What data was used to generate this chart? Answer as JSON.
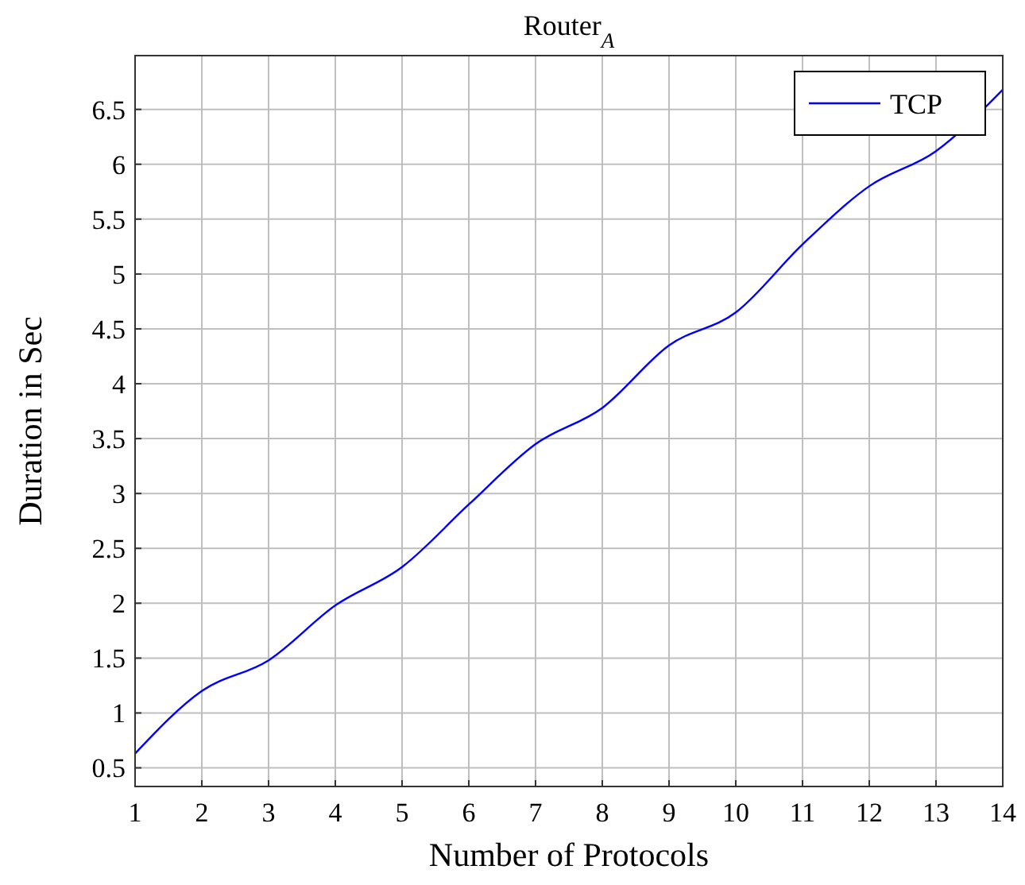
{
  "chart_data": {
    "type": "line",
    "title": "Router$_{A}$",
    "xlabel": "Number of Protocols",
    "ylabel": "Duration in Sec",
    "x": [
      1,
      2,
      3,
      4,
      5,
      6,
      7,
      8,
      9,
      10,
      11,
      12,
      13,
      14
    ],
    "series": [
      {
        "name": "TCP",
        "color": "#0000ff",
        "values": [
          0.63,
          1.2,
          1.48,
          1.98,
          2.33,
          2.9,
          3.45,
          3.78,
          4.35,
          4.65,
          5.27,
          5.8,
          6.12,
          6.68
        ]
      }
    ],
    "xlim": [
      1,
      14
    ],
    "xticks": [
      1,
      2,
      3,
      4,
      5,
      6,
      7,
      8,
      9,
      10,
      11,
      12,
      13,
      14
    ],
    "ylim": [
      0.33,
      6.99
    ],
    "yticks": [
      0.5,
      1,
      1.5,
      2,
      2.5,
      3,
      3.5,
      4,
      4.5,
      5,
      5.5,
      6,
      6.5
    ],
    "grid": true,
    "legend": "top right",
    "marker": "none",
    "line_style": "solid"
  }
}
